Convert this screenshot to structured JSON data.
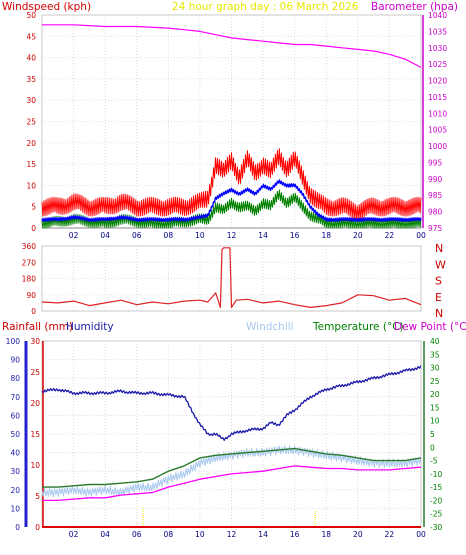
{
  "chart_data": [
    {
      "type": "line",
      "title": "24 hour graph day : 06 March 2026",
      "ylabel": "Windspeed (kph)",
      "y2label": "Barometer (hpa)",
      "xticks": [
        "02",
        "04",
        "06",
        "08",
        "10",
        "12",
        "14",
        "16",
        "18",
        "20",
        "22",
        "00"
      ],
      "ylim": [
        0,
        50
      ],
      "y2lim": [
        975,
        1040
      ],
      "yticks": [
        "0",
        "5",
        "10",
        "15",
        "20",
        "25",
        "30",
        "35",
        "40",
        "45",
        "50"
      ],
      "y2ticks": [
        "975",
        "980",
        "985",
        "990",
        "995",
        "1000",
        "1005",
        "1010",
        "1015",
        "1020",
        "1025",
        "1030",
        "1035",
        "1040"
      ],
      "grid": true,
      "colors": {
        "gust": "#ff0000",
        "average": "#0000ff",
        "speed": "#008000",
        "barometer": "#ff00ff",
        "axis_left": "#cc0000",
        "axis_right": "#cc00cc",
        "title": "#e6e600"
      },
      "series": [
        {
          "name": "Gust",
          "x": [
            0,
            1,
            2,
            3,
            4,
            5,
            6,
            7,
            8,
            9,
            10,
            10.5,
            11,
            11.5,
            12,
            12.5,
            13,
            13.5,
            14,
            14.5,
            15,
            15.5,
            16,
            16.5,
            17,
            17.5,
            18,
            19,
            20,
            21,
            22,
            23,
            24
          ],
          "values": [
            5,
            5,
            6,
            5,
            5,
            6,
            5,
            5,
            5,
            5,
            6,
            7,
            15,
            13,
            16,
            12,
            16,
            13,
            15,
            13,
            17,
            14,
            16,
            12,
            8,
            6,
            5,
            5,
            4,
            5,
            5,
            5,
            5
          ]
        },
        {
          "name": "Average",
          "x": [
            0,
            1,
            2,
            3,
            4,
            5,
            6,
            7,
            8,
            9,
            10,
            10.5,
            11,
            11.5,
            12,
            12.5,
            13,
            13.5,
            14,
            14.5,
            15,
            15.5,
            16,
            16.5,
            17,
            17.5,
            18,
            19,
            20,
            21,
            22,
            23,
            24
          ],
          "values": [
            2,
            2,
            2.5,
            2,
            2,
            2.5,
            2,
            2,
            2,
            2,
            2.5,
            3,
            7,
            8,
            9,
            8,
            9,
            8,
            10,
            9,
            11,
            10,
            10,
            8,
            5,
            3,
            2,
            2,
            2,
            2,
            2,
            2,
            2
          ]
        },
        {
          "name": "Speed",
          "x": [
            0,
            1,
            2,
            3,
            4,
            5,
            6,
            7,
            8,
            9,
            10,
            10.5,
            11,
            11.5,
            12,
            12.5,
            13,
            13.5,
            14,
            14.5,
            15,
            15.5,
            16,
            16.5,
            17,
            17.5,
            18,
            19,
            20,
            21,
            22,
            23,
            24
          ],
          "values": [
            1,
            1.5,
            2,
            1.5,
            1,
            2,
            1.5,
            1,
            1,
            1.5,
            2,
            2,
            5,
            4,
            6,
            5,
            5,
            4,
            6,
            5,
            8,
            6,
            7,
            5,
            3,
            2,
            1,
            1,
            1,
            1,
            1,
            1,
            1
          ]
        },
        {
          "name": "Barometer",
          "x": [
            0,
            2,
            4,
            6,
            8,
            9,
            10,
            11,
            12,
            13,
            14,
            15,
            16,
            17,
            18,
            19,
            20,
            21,
            22,
            23,
            24
          ],
          "values": [
            1037,
            1037,
            1036.5,
            1036.5,
            1036,
            1035.5,
            1035,
            1034,
            1033,
            1032.5,
            1032,
            1031.5,
            1031,
            1031,
            1030.5,
            1030,
            1029.5,
            1029,
            1028,
            1026.5,
            1024
          ]
        }
      ]
    },
    {
      "type": "line",
      "title": "",
      "ylim": [
        0,
        360
      ],
      "yticks": [
        "0",
        "90",
        "180",
        "270",
        "360"
      ],
      "direction_labels": [
        "N",
        "W",
        "S",
        "E",
        "N"
      ],
      "colors": {
        "line": "#dd2222",
        "labels": "#cc0000"
      },
      "series": [
        {
          "name": "",
          "x": [
            0,
            1,
            2,
            3,
            4,
            5,
            6,
            7,
            8,
            9,
            10,
            10.5,
            11,
            11.3,
            11.4,
            11.5,
            11.9,
            12,
            12.3,
            13,
            14,
            15,
            16,
            17,
            18,
            19,
            20,
            21,
            22,
            23,
            24
          ],
          "values": [
            50,
            45,
            55,
            30,
            45,
            60,
            35,
            50,
            40,
            55,
            60,
            50,
            100,
            20,
            340,
            350,
            350,
            20,
            60,
            65,
            45,
            55,
            35,
            20,
            30,
            45,
            90,
            85,
            60,
            70,
            35
          ]
        }
      ]
    },
    {
      "type": "line",
      "title": "",
      "labels": {
        "rainfall": "Rainfall (mm)",
        "humidity": "Humidity",
        "windchill": "Windchill",
        "temperature": "Temperature (°C)",
        "dewpoint": "Dew Point (°C)"
      },
      "humidity_ticks": [
        "0",
        "10",
        "20",
        "30",
        "40",
        "50",
        "60",
        "70",
        "80",
        "90",
        "100"
      ],
      "rain_ticks": [
        "0",
        "5",
        "10",
        "15",
        "20",
        "25",
        "30"
      ],
      "temp_ticks": [
        "-30",
        "-25",
        "-20",
        "-15",
        "-10",
        "-5",
        "0",
        "5",
        "10",
        "15",
        "20",
        "25",
        "30",
        "35",
        "40"
      ],
      "ylim_humidity": [
        0,
        100
      ],
      "ylim_rain": [
        0,
        30
      ],
      "ylim_temp": [
        -30,
        40
      ],
      "colors": {
        "humidity": "#1a1aaa",
        "windchill": "#a8c8f0",
        "temperature": "#2a7a2a",
        "dewpoint": "#ff00ff",
        "rain": "#dd0000",
        "rain_minor": "#e6e600",
        "label_rain": "#cc0000",
        "label_humidity": "#1a1aaa",
        "label_windchill": "#a8c8f0",
        "label_temp": "#008000",
        "label_dew": "#cc00cc"
      },
      "series": [
        {
          "name": "Humidity",
          "x": [
            0,
            1,
            2,
            3,
            4,
            5,
            6,
            7,
            8,
            9,
            10,
            10.5,
            11,
            11.5,
            12,
            13,
            14,
            14.5,
            15,
            15.5,
            16,
            17,
            18,
            19,
            20,
            21,
            22,
            23,
            24
          ],
          "values": [
            73,
            74,
            72,
            72,
            72,
            73,
            72,
            72,
            71,
            70,
            55,
            50,
            50,
            47,
            50,
            52,
            53,
            56,
            55,
            60,
            63,
            70,
            74,
            76,
            78,
            80,
            82,
            84,
            86
          ]
        },
        {
          "name": "Windchill",
          "x": [
            0,
            1,
            2,
            3,
            4,
            5,
            6,
            7,
            8,
            9,
            10,
            11,
            12,
            13,
            14,
            15,
            16,
            17,
            18,
            19,
            20,
            21,
            22,
            23,
            24
          ],
          "values": [
            -17,
            -17,
            -16,
            -17,
            -16,
            -17,
            -15,
            -15,
            -12,
            -10,
            -6,
            -4,
            -3,
            -2,
            -2,
            -1,
            -1,
            -2,
            -3,
            -4,
            -5,
            -6,
            -6,
            -6,
            -5
          ]
        },
        {
          "name": "Temperature",
          "x": [
            0,
            1,
            2,
            3,
            4,
            5,
            6,
            7,
            8,
            9,
            10,
            11,
            12,
            13,
            14,
            15,
            16,
            17,
            18,
            19,
            20,
            21,
            22,
            23,
            24
          ],
          "values": [
            -15,
            -15,
            -14.5,
            -14,
            -14,
            -13.5,
            -13,
            -12,
            -9,
            -7,
            -4,
            -3,
            -2.5,
            -2,
            -1.5,
            -1,
            -0.5,
            -1.5,
            -2.5,
            -3,
            -4,
            -5,
            -5,
            -5,
            -4
          ]
        },
        {
          "name": "Dew Point",
          "x": [
            0,
            1,
            2,
            3,
            4,
            5,
            6,
            7,
            8,
            9,
            10,
            11,
            12,
            13,
            14,
            15,
            16,
            17,
            18,
            19,
            20,
            21,
            22,
            23,
            24
          ],
          "values": [
            -20,
            -20,
            -19.5,
            -19,
            -19,
            -18,
            -17.5,
            -17,
            -15,
            -13.5,
            -12,
            -11,
            -10,
            -9.5,
            -9,
            -8,
            -7,
            -7.5,
            -8,
            -8,
            -8.5,
            -8.5,
            -8.5,
            -8,
            -7.5
          ]
        },
        {
          "name": "Rainfall",
          "x": [
            0,
            24
          ],
          "values": [
            0,
            0
          ]
        }
      ]
    }
  ]
}
